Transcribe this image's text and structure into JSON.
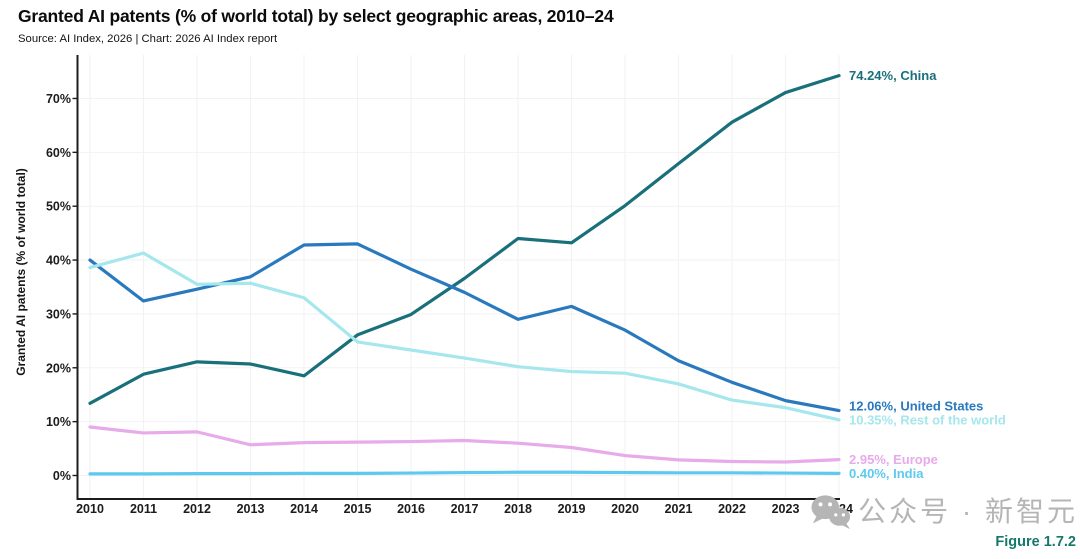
{
  "header": {
    "title": "Granted AI patents (% of world total) by select geographic areas, 2010–24",
    "source": "Source: AI Index, 2026 | Chart: 2026 AI Index report"
  },
  "footer": {
    "figure_label": "Figure 1.7.2",
    "watermark_icon": "wechat-icon",
    "watermark_text": "公众号 · 新智元"
  },
  "colors": {
    "china": "#19707b",
    "united_states": "#2a79be",
    "rest_of_world": "#a5e7ed",
    "europe": "#e7abea",
    "india": "#5ec9ef",
    "axis": "#1c1c1c",
    "grid": "#f2f2f2",
    "tick_text": "#1c1c1c",
    "figure_label": "#15786b",
    "watermark": "#b5b5b5"
  },
  "chart_data": {
    "type": "line",
    "title": "Granted AI patents (% of world total) by select geographic areas, 2010–24",
    "xlabel": "",
    "ylabel": "Granted AI patents (% of world total)",
    "x": [
      2010,
      2011,
      2012,
      2013,
      2014,
      2015,
      2016,
      2017,
      2018,
      2019,
      2020,
      2021,
      2022,
      2023,
      2024
    ],
    "y_ticks": [
      0,
      10,
      20,
      30,
      40,
      50,
      60,
      70
    ],
    "y_tick_suffix": "%",
    "ylim": [
      0,
      78
    ],
    "grid": true,
    "legend_position": "right-end-of-line-labels",
    "series": [
      {
        "name": "China",
        "color": "#19707b",
        "end_label": "74.24%, China",
        "values": [
          13.4,
          18.8,
          21.1,
          20.7,
          18.5,
          26.1,
          29.9,
          36.6,
          44.0,
          43.2,
          50.1,
          57.9,
          65.6,
          71.1,
          74.24
        ]
      },
      {
        "name": "United States",
        "color": "#2a79be",
        "end_label": "12.06%, United States",
        "values": [
          40.0,
          32.4,
          34.6,
          36.9,
          42.8,
          43.0,
          38.3,
          34.0,
          29.0,
          31.4,
          27.0,
          21.3,
          17.3,
          13.9,
          12.06
        ]
      },
      {
        "name": "Rest of the world",
        "color": "#a5e7ed",
        "end_label": "10.35%, Rest of the world",
        "values": [
          38.6,
          41.3,
          35.5,
          35.7,
          33.0,
          24.8,
          23.3,
          21.8,
          20.2,
          19.3,
          19.0,
          17.0,
          14.0,
          12.6,
          10.35
        ]
      },
      {
        "name": "Europe",
        "color": "#e7abea",
        "end_label": "2.95%, Europe",
        "values": [
          9.0,
          7.9,
          8.1,
          5.7,
          6.1,
          6.2,
          6.3,
          6.5,
          6.0,
          5.2,
          3.7,
          2.9,
          2.6,
          2.5,
          2.95
        ]
      },
      {
        "name": "India",
        "color": "#5ec9ef",
        "end_label": "0.40%, India",
        "values": [
          0.3,
          0.3,
          0.35,
          0.35,
          0.4,
          0.4,
          0.45,
          0.55,
          0.6,
          0.6,
          0.55,
          0.5,
          0.5,
          0.45,
          0.4
        ]
      }
    ]
  }
}
